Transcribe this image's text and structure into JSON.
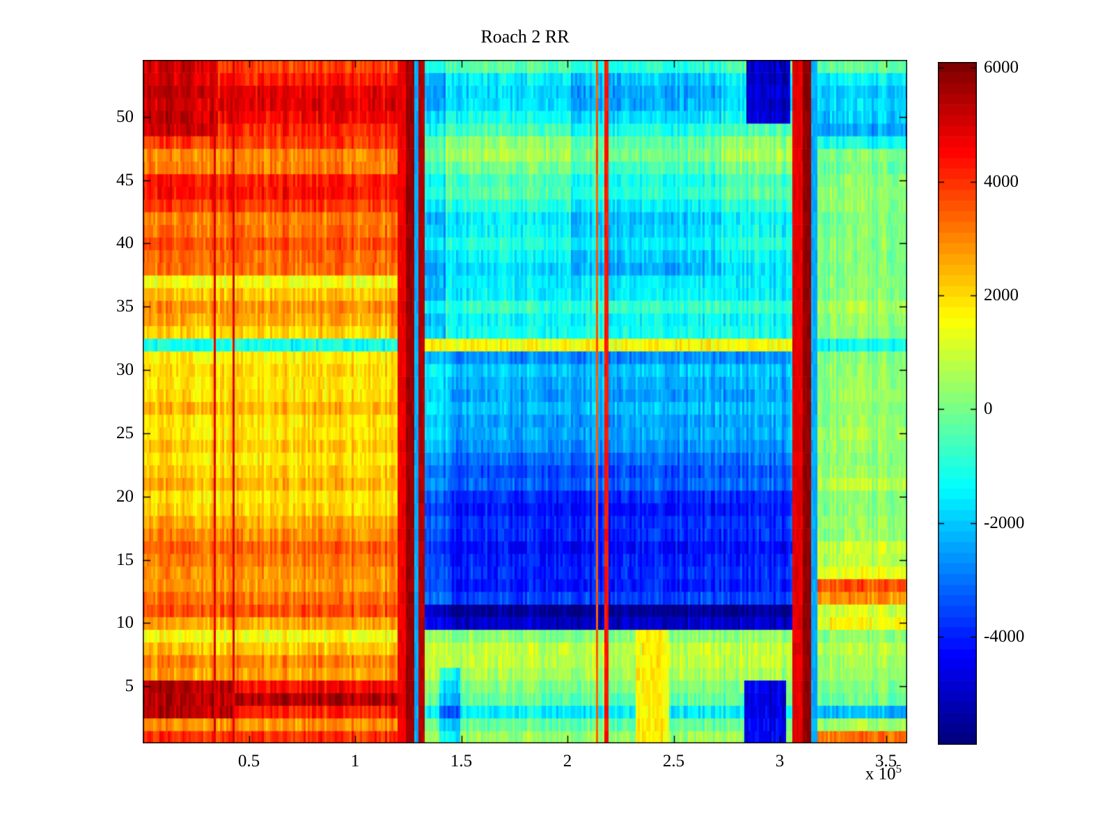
{
  "chart_data": {
    "type": "heatmap",
    "title": "Roach 2 RR",
    "colormap": "jet",
    "x_axis": {
      "range_e5": [
        0,
        3.6
      ],
      "tick_values_e5": [
        0.5,
        1,
        1.5,
        2,
        2.5,
        3,
        3.5
      ],
      "tick_labels": [
        "0.5",
        "1",
        "1.5",
        "2",
        "2.5",
        "3",
        "3.5"
      ],
      "multiplier_prefix": "x 10",
      "multiplier_exponent": "5"
    },
    "y_axis": {
      "range": [
        0.5,
        54.5
      ],
      "tick_values": [
        5,
        10,
        15,
        20,
        25,
        30,
        35,
        40,
        45,
        50
      ],
      "tick_labels": [
        "5",
        "10",
        "15",
        "20",
        "25",
        "30",
        "35",
        "40",
        "45",
        "50"
      ]
    },
    "colorbar": {
      "clim": [
        -5900,
        6100
      ],
      "tick_values": [
        6000,
        4000,
        2000,
        0,
        -2000,
        -4000
      ],
      "tick_labels": [
        "6000",
        "4000",
        "2000",
        "0",
        "-2000",
        "-4000"
      ]
    },
    "heatmap": {
      "rows": 54,
      "comment": "row_values are approximate data values per row (row 1 = bottom .. row 54 = top) for the three big x-sections of the image; stripes/patches are localized features; units match the colorbar.",
      "sections": [
        {
          "name": "left",
          "x_e5": [
            0,
            1.2
          ],
          "row_values": [
            4000,
            2800,
            4300,
            5600,
            4600,
            2600,
            3100,
            2400,
            1500,
            2600,
            3700,
            3200,
            2600,
            2900,
            3100,
            3500,
            3000,
            2500,
            2100,
            2000,
            2400,
            2100,
            1900,
            2300,
            2000,
            1900,
            2400,
            2000,
            1900,
            2000,
            1800,
            -1300,
            1900,
            2500,
            2900,
            2400,
            1400,
            3100,
            3400,
            3700,
            3300,
            3100,
            3800,
            4500,
            4200,
            3200,
            3100,
            3800,
            4200,
            4600,
            5100,
            4700,
            4400,
            3800
          ]
        },
        {
          "name": "mid",
          "x_e5": [
            1.325,
            3.06
          ],
          "row_values": [
            400,
            -300,
            -1400,
            -200,
            200,
            500,
            900,
            1000,
            300,
            -4700,
            -5200,
            -3300,
            -3900,
            -3500,
            -3700,
            -3900,
            -3500,
            -3600,
            -3800,
            -3400,
            -2900,
            -3200,
            -2700,
            -2200,
            -1900,
            -2100,
            -1800,
            -2100,
            -1900,
            -1700,
            -2300,
            1500,
            -1300,
            -1500,
            -800,
            -1400,
            -1600,
            -1900,
            -1400,
            -900,
            -1300,
            -1500,
            -1000,
            -300,
            -600,
            100,
            700,
            200,
            -500,
            -1300,
            -1600,
            -2000,
            -1400,
            -400
          ]
        },
        {
          "name": "right",
          "x_e5": [
            3.148,
            3.6
          ],
          "row_values": [
            3300,
            400,
            -2100,
            -100,
            200,
            300,
            500,
            900,
            300,
            1500,
            1100,
            2800,
            3500,
            1400,
            800,
            1000,
            400,
            300,
            200,
            300,
            700,
            300,
            200,
            400,
            600,
            300,
            200,
            400,
            300,
            200,
            200,
            -1400,
            0,
            200,
            600,
            300,
            100,
            -100,
            200,
            300,
            100,
            0,
            200,
            300,
            100,
            0,
            200,
            -1300,
            -2400,
            -2100,
            -1700,
            -2200,
            -1400,
            -200
          ]
        }
      ],
      "stripes": [
        {
          "x_e5": [
            0.335,
            0.347
          ],
          "value": 5000
        },
        {
          "x_e5": [
            0.425,
            0.437
          ],
          "value": 5000
        },
        {
          "x_e5": [
            1.2,
            1.243
          ],
          "value": 4800
        },
        {
          "x_e5": [
            1.243,
            1.283
          ],
          "value": 5800
        },
        {
          "x_e5": [
            1.283,
            1.303
          ],
          "value": -2400
        },
        {
          "x_e5": [
            1.303,
            1.325
          ],
          "value": 5500
        },
        {
          "x_e5": [
            2.13,
            2.14
          ],
          "value": 3600
        },
        {
          "x_e5": [
            2.175,
            2.19
          ],
          "value": 4400
        },
        {
          "x_e5": [
            3.06,
            3.105
          ],
          "value": 4900
        },
        {
          "x_e5": [
            3.108,
            3.148
          ],
          "value": 5900
        },
        {
          "x_e5": [
            3.15,
            3.175
          ],
          "value": -2400
        }
      ],
      "patches": [
        {
          "rows": [
            50,
            54
          ],
          "x_e5": [
            2.84,
            3.05
          ],
          "value": -5100
        },
        {
          "rows": [
            1,
            5
          ],
          "x_e5": [
            2.83,
            3.03
          ],
          "value": -4600
        },
        {
          "rows": [
            49,
            54
          ],
          "x_e5": [
            0.0,
            0.35
          ],
          "value": 5200
        },
        {
          "rows": [
            3,
            5
          ],
          "x_e5": [
            0.0,
            0.42
          ],
          "value": 5500
        },
        {
          "rows": [
            1,
            9
          ],
          "x_e5": [
            2.32,
            2.48
          ],
          "value": 1700
        },
        {
          "rows": [
            38,
            54
          ],
          "x_e5": [
            2.02,
            2.72
          ],
          "delta": -600
        },
        {
          "rows": [
            10,
            31
          ],
          "x_e5": [
            1.45,
            3.05
          ],
          "delta": -400
        },
        {
          "rows": [
            1,
            6
          ],
          "x_e5": [
            1.4,
            1.5
          ],
          "delta": -1800
        },
        {
          "rows": [
            33,
            54
          ],
          "x_e5": [
            1.33,
            1.43
          ],
          "delta": -900
        }
      ],
      "noise": {
        "seed": 12345,
        "col_amp": 420,
        "cell_amp": 380,
        "row_amp": 150
      }
    }
  }
}
